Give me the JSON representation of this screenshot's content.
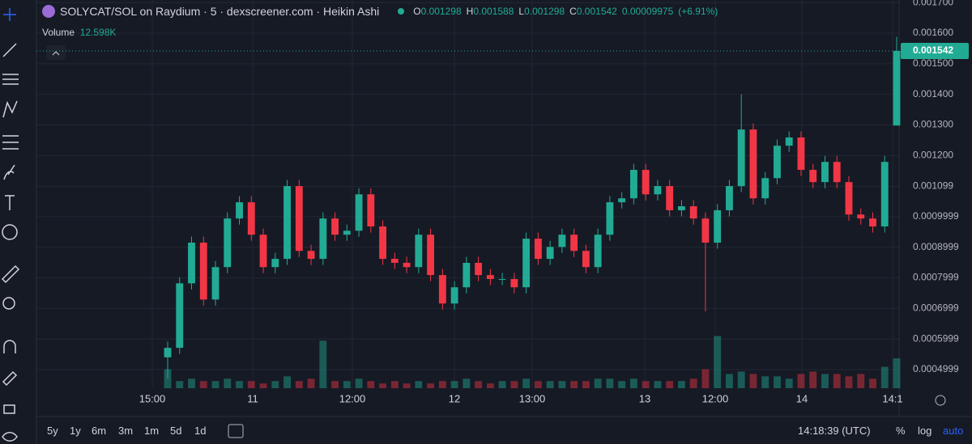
{
  "header": {
    "title": "SOLYCAT/SOL on Raydium · 5 · dexscreener.com · Heikin Ashi",
    "ohlc_letters": [
      "O",
      "H",
      "L",
      "C"
    ],
    "change": 9.975e-05,
    "change_pct": "(+6.91%)",
    "volume_title": "Volume",
    "volume_label": "12.598K"
  },
  "chart_data": {
    "type": "candlestick",
    "open": [
      0.00054,
      0.000571,
      0.000782,
      0.000915,
      0.000729,
      0.000835,
      0.000994,
      0.001047,
      0.000941,
      0.000835,
      0.000862,
      0.0011,
      0.000888,
      0.000862,
      0.000994,
      0.000941,
      0.000954,
      0.001073,
      0.000968,
      0.000862,
      0.000849,
      0.000835,
      0.000941,
      0.000809,
      0.000716,
      0.000769,
      0.000849,
      0.000809,
      0.000796,
      0.000796,
      0.000769,
      0.000928,
      0.000862,
      0.000901,
      0.000941,
      0.000888,
      0.000835,
      0.000941,
      0.001047,
      0.00106,
      0.001153,
      0.001073,
      0.0011,
      0.001021,
      0.001034,
      0.000994,
      0.000915,
      0.001021,
      0.0011,
      0.001285,
      0.00106,
      0.001126,
      0.001232,
      0.001259,
      0.001153,
      0.001113,
      0.001179,
      0.001113,
      0.001007,
      0.000994,
      0.000968,
      0.001298
    ],
    "high": [
      0.000591,
      0.000802,
      0.000935,
      0.000935,
      0.000855,
      0.001014,
      0.001067,
      0.001067,
      0.000961,
      0.000882,
      0.00112,
      0.00112,
      0.000908,
      0.001014,
      0.001014,
      0.000974,
      0.001093,
      0.001093,
      0.000988,
      0.000882,
      0.000869,
      0.000961,
      0.000961,
      0.000829,
      0.000789,
      0.000869,
      0.000869,
      0.000829,
      0.000816,
      0.000816,
      0.000948,
      0.000948,
      0.000921,
      0.000961,
      0.000961,
      0.000908,
      0.000961,
      0.001067,
      0.00108,
      0.001173,
      0.001173,
      0.00112,
      0.00112,
      0.001054,
      0.001054,
      0.001014,
      0.001041,
      0.00112,
      0.0014,
      0.001305,
      0.001146,
      0.001252,
      0.001279,
      0.001279,
      0.001173,
      0.001199,
      0.001199,
      0.001133,
      0.001027,
      0.001014,
      0.001199,
      0.001588
    ],
    "low": [
      0.00047,
      0.000551,
      0.000762,
      0.000709,
      0.000709,
      0.000815,
      0.000974,
      0.000921,
      0.000815,
      0.000815,
      0.000842,
      0.000868,
      0.000842,
      0.000842,
      0.000921,
      0.000921,
      0.000934,
      0.000948,
      0.000842,
      0.000829,
      0.000815,
      0.000815,
      0.000789,
      0.000696,
      0.000696,
      0.000749,
      0.000789,
      0.000776,
      0.000776,
      0.000749,
      0.000749,
      0.000842,
      0.000842,
      0.000881,
      0.000868,
      0.000815,
      0.000815,
      0.000921,
      0.001027,
      0.00104,
      0.001053,
      0.001053,
      0.001001,
      0.001001,
      0.000974,
      0.00069,
      0.000895,
      0.001001,
      0.00108,
      0.00104,
      0.00104,
      0.001106,
      0.001212,
      0.001133,
      0.001093,
      0.001093,
      0.001093,
      0.000987,
      0.000974,
      0.000948,
      0.000948,
      0.001298
    ],
    "close": [
      0.000571,
      0.000782,
      0.000915,
      0.000729,
      0.000835,
      0.000994,
      0.001047,
      0.000941,
      0.000835,
      0.000862,
      0.0011,
      0.000888,
      0.000862,
      0.000994,
      0.000941,
      0.000954,
      0.001073,
      0.000968,
      0.000862,
      0.000849,
      0.000835,
      0.000941,
      0.000809,
      0.000716,
      0.000769,
      0.000849,
      0.000809,
      0.000796,
      0.000796,
      0.000769,
      0.000928,
      0.000862,
      0.000901,
      0.000941,
      0.000888,
      0.000835,
      0.000941,
      0.001047,
      0.00106,
      0.001153,
      0.001073,
      0.0011,
      0.001021,
      0.001034,
      0.000994,
      0.000915,
      0.001021,
      0.0011,
      0.001285,
      0.00106,
      0.001126,
      0.001232,
      0.001259,
      0.001153,
      0.001113,
      0.001179,
      0.001113,
      0.001007,
      0.000994,
      0.000968,
      0.001179,
      0.001542
    ],
    "volume": [
      8,
      3,
      4,
      3,
      3,
      4,
      3,
      3,
      2,
      3,
      5,
      3,
      4,
      20,
      3,
      3,
      4,
      3,
      2,
      3,
      2,
      3,
      2,
      3,
      3,
      4,
      3,
      2,
      3,
      3,
      4,
      3,
      3,
      3,
      3,
      3,
      4,
      4,
      3,
      4,
      3,
      3,
      3,
      3,
      4,
      8,
      22,
      6,
      7,
      6,
      5,
      5,
      4,
      6,
      7,
      6,
      6,
      5,
      6,
      4,
      9,
      12.598
    ],
    "volume_lim": [
      0,
      30
    ],
    "ylim": [
      0.000439,
      0.0017085
    ],
    "yticks": [
      {
        "value": 0.0017,
        "label": "0.001700"
      },
      {
        "value": 0.0016,
        "label": "0.001600"
      },
      {
        "value": 0.0015,
        "label": "0.001500"
      },
      {
        "value": 0.0014,
        "label": "0.001400"
      },
      {
        "value": 0.0013,
        "label": "0.001300"
      },
      {
        "value": 0.0012,
        "label": "0.001200"
      },
      0.001099,
      0.0009999,
      0.0008999,
      0.0007999,
      0.0006999,
      0.0005999,
      0.0004999
    ],
    "x_labels": [
      "15:00",
      "11",
      "12:00",
      "12",
      "13:00",
      "13",
      "12:00",
      "14",
      "14:1"
    ],
    "colors": {
      "up": "#22ab94",
      "down": "#f23645"
    },
    "grid": true
  },
  "footer": {
    "ranges": [
      "5y",
      "1y",
      "6m",
      "3m",
      "1m",
      "5d",
      "1d"
    ],
    "clock": "14:18:39 (UTC)",
    "scales": [
      "%",
      "log",
      "auto"
    ]
  }
}
